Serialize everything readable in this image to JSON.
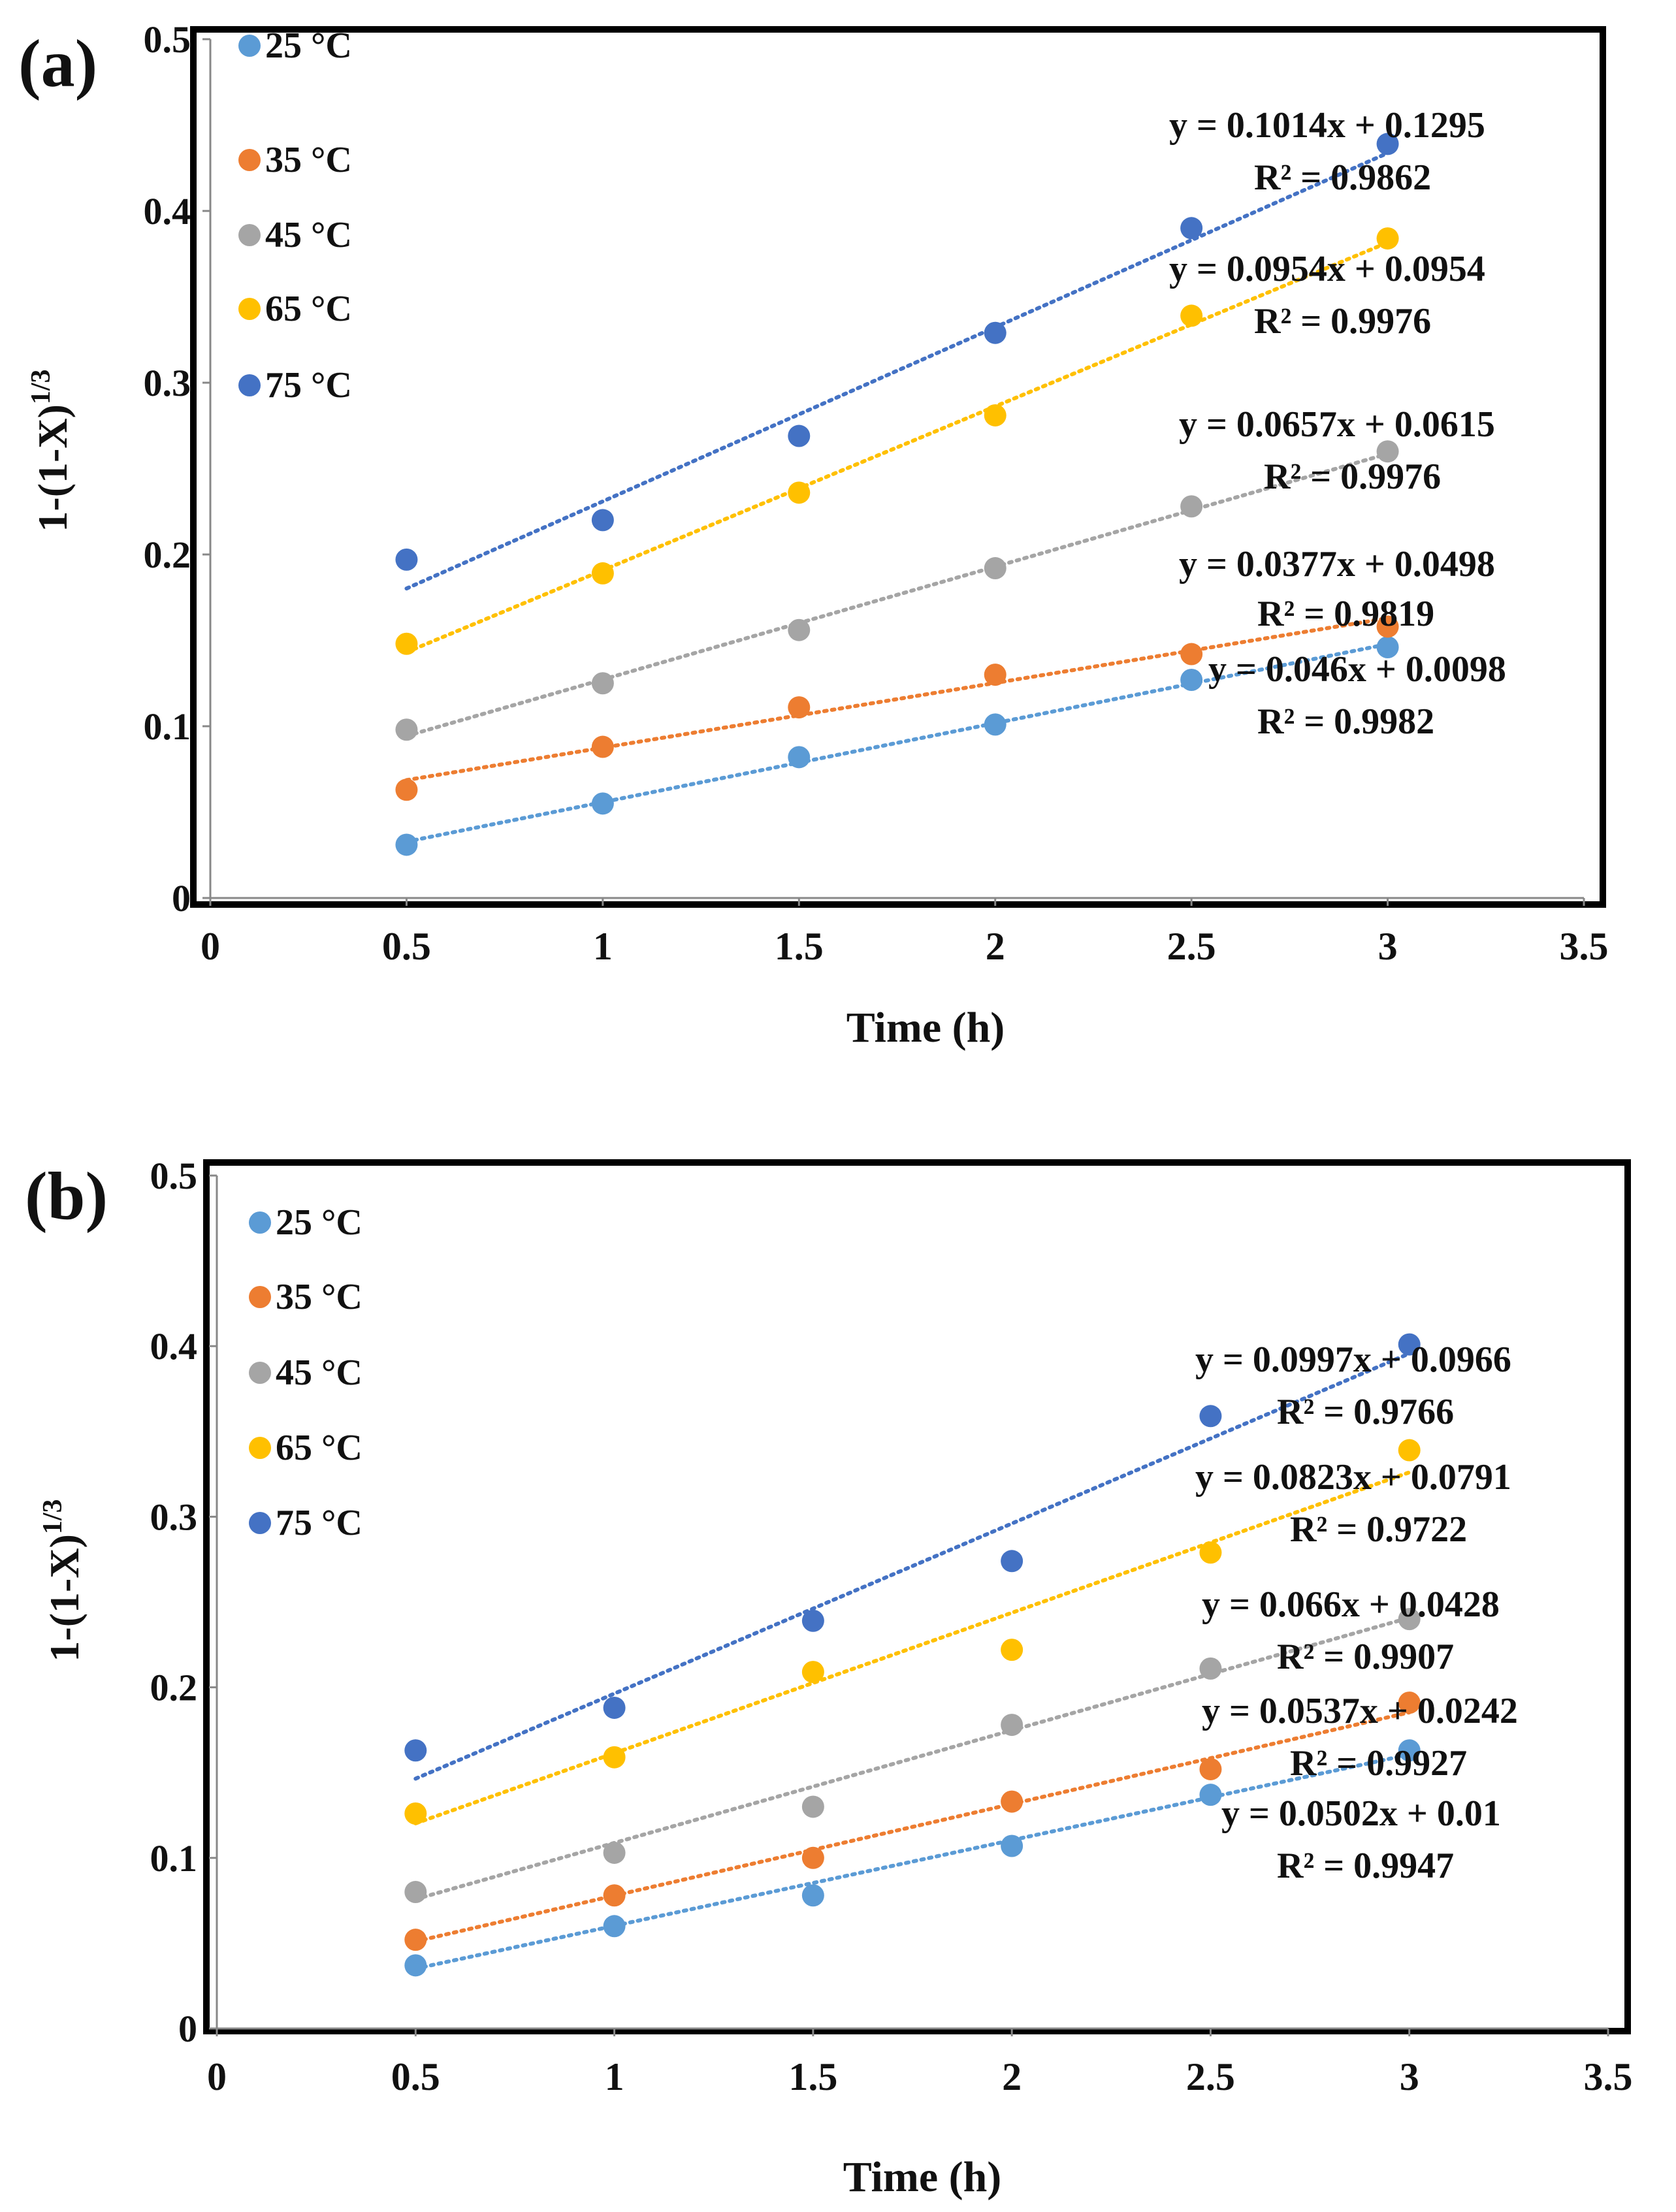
{
  "series_colors": {
    "25": "#5B9BD5",
    "35": "#ED7D31",
    "45": "#A5A5A5",
    "65": "#FFC000",
    "75": "#4472C4"
  },
  "chart_data": [
    {
      "type": "scatter",
      "panel_label": "(a)",
      "xlabel": "Time (h)",
      "ylabel": "1-(1-X)",
      "ylabel_sup": "1/3",
      "xlim": [
        0,
        3.5
      ],
      "ylim": [
        0,
        0.5
      ],
      "xticks": [
        "0",
        "0.5",
        "1",
        "1.5",
        "2",
        "2.5",
        "3",
        "3.5"
      ],
      "yticks": [
        "0",
        "0.1",
        "0.2",
        "0.3",
        "0.4",
        "0.5"
      ],
      "x": [
        0.5,
        1,
        1.5,
        2,
        2.5,
        3
      ],
      "series": [
        {
          "name": "25 °C",
          "key": "25",
          "values": [
            0.031,
            0.055,
            0.082,
            0.101,
            0.127,
            0.146
          ],
          "trendline": {
            "slope": 0.046,
            "intercept": 0.0098
          },
          "equation": "y = 0.046x + 0.0098",
          "r2": "R² = 0.9982"
        },
        {
          "name": "35 °C",
          "key": "35",
          "values": [
            0.063,
            0.088,
            0.111,
            0.13,
            0.142,
            0.158
          ],
          "trendline": {
            "slope": 0.0377,
            "intercept": 0.0498
          },
          "equation": "y = 0.0377x + 0.0498",
          "r2": "R² = 0.9819"
        },
        {
          "name": "45 °C",
          "key": "45",
          "values": [
            0.098,
            0.125,
            0.156,
            0.192,
            0.228,
            0.26
          ],
          "trendline": {
            "slope": 0.0657,
            "intercept": 0.0615
          },
          "equation": "y = 0.0657x + 0.0615",
          "r2": "R² = 0.9976"
        },
        {
          "name": "65 °C",
          "key": "65",
          "values": [
            0.148,
            0.189,
            0.236,
            0.281,
            0.339,
            0.384
          ],
          "trendline": {
            "slope": 0.0954,
            "intercept": 0.0954
          },
          "equation": "y = 0.0954x + 0.0954",
          "r2": "R² = 0.9976"
        },
        {
          "name": "75 °C",
          "key": "75",
          "values": [
            0.197,
            0.22,
            0.269,
            0.329,
            0.39,
            0.439
          ],
          "trendline": {
            "slope": 0.1014,
            "intercept": 0.1295
          },
          "equation": "y = 0.1014x + 0.1295",
          "r2": "R² = 0.9862"
        }
      ]
    },
    {
      "type": "scatter",
      "panel_label": "(b)",
      "xlabel": "Time (h)",
      "ylabel": "1-(1-X)",
      "ylabel_sup": "1/3",
      "xlim": [
        0,
        3.5
      ],
      "ylim": [
        0,
        0.5
      ],
      "xticks": [
        "0",
        "0.5",
        "1",
        "1.5",
        "2",
        "2.5",
        "3",
        "3.5"
      ],
      "yticks": [
        "0",
        "0.1",
        "0.2",
        "0.3",
        "0.4",
        "0.5"
      ],
      "x": [
        0.5,
        1,
        1.5,
        2,
        2.5,
        3
      ],
      "series": [
        {
          "name": "25 °C",
          "key": "25",
          "values": [
            0.037,
            0.06,
            0.078,
            0.107,
            0.137,
            0.163
          ],
          "trendline": {
            "slope": 0.0502,
            "intercept": 0.01
          },
          "equation": "y = 0.0502x + 0.01",
          "r2": "R² = 0.9947"
        },
        {
          "name": "35 °C",
          "key": "35",
          "values": [
            0.052,
            0.078,
            0.1,
            0.133,
            0.152,
            0.191
          ],
          "trendline": {
            "slope": 0.0537,
            "intercept": 0.0242
          },
          "equation": "y = 0.0537x + 0.0242",
          "r2": "R² = 0.9927"
        },
        {
          "name": "45 °C",
          "key": "45",
          "values": [
            0.08,
            0.103,
            0.13,
            0.178,
            0.211,
            0.24
          ],
          "trendline": {
            "slope": 0.066,
            "intercept": 0.0428
          },
          "equation": "y = 0.066x + 0.0428",
          "r2": "R² = 0.9907"
        },
        {
          "name": "65 °C",
          "key": "65",
          "values": [
            0.126,
            0.159,
            0.209,
            0.222,
            0.279,
            0.339
          ],
          "trendline": {
            "slope": 0.0823,
            "intercept": 0.0791
          },
          "equation": "y = 0.0823x + 0.0791",
          "r2": "R² = 0.9722"
        },
        {
          "name": "75 °C",
          "key": "75",
          "values": [
            0.163,
            0.188,
            0.239,
            0.274,
            0.359,
            0.401
          ],
          "trendline": {
            "slope": 0.0997,
            "intercept": 0.0966
          },
          "equation": "y = 0.0997x + 0.0966",
          "r2": "R² = 0.9766"
        }
      ]
    }
  ]
}
